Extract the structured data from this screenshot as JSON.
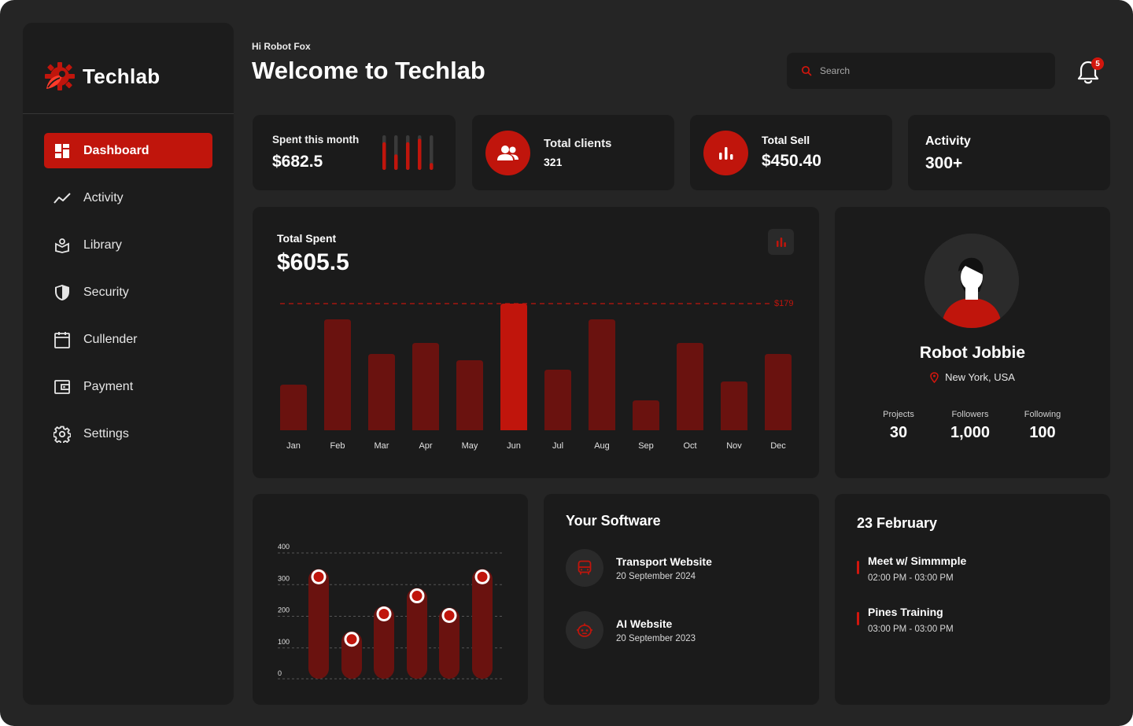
{
  "brand": {
    "name": "Techlab"
  },
  "sidebar": {
    "items": [
      {
        "label": "Dashboard",
        "icon": "dashboard-icon",
        "active": true
      },
      {
        "label": "Activity",
        "icon": "activity-icon"
      },
      {
        "label": "Library",
        "icon": "library-icon"
      },
      {
        "label": "Security",
        "icon": "shield-icon"
      },
      {
        "label": "Cullender",
        "icon": "calendar-icon"
      },
      {
        "label": "Payment",
        "icon": "wallet-icon"
      },
      {
        "label": "Settings",
        "icon": "gear-icon"
      }
    ]
  },
  "header": {
    "greeting": "Hi Robot Fox",
    "title": "Welcome to Techlab",
    "search_placeholder": "Search",
    "notification_count": "5"
  },
  "stats": {
    "spent": {
      "label": "Spent this month",
      "value": "$682.5"
    },
    "clients": {
      "label": "Total clients",
      "value": "321"
    },
    "sell": {
      "label": "Total Sell",
      "value": "$450.40"
    },
    "activity": {
      "label": "Activity",
      "value": "300+"
    }
  },
  "total_spent": {
    "label": "Total Spent",
    "value": "$605.5",
    "marker_label": "$179"
  },
  "profile": {
    "name": "Robot Jobbie",
    "location": "New York, USA",
    "stats": [
      {
        "label": "Projects",
        "value": "30"
      },
      {
        "label": "Followers",
        "value": "1,000"
      },
      {
        "label": "Following",
        "value": "100"
      }
    ]
  },
  "software": {
    "title": "Your Software",
    "items": [
      {
        "title": "Transport Website",
        "date": "20 September 2024",
        "icon": "bus-icon"
      },
      {
        "title": "AI Website",
        "date": "20 September 2023",
        "icon": "robot-icon"
      }
    ]
  },
  "schedule": {
    "date": "23 February",
    "events": [
      {
        "title": "Meet w/ Simmmple",
        "time": "02:00 PM - 03:00 PM"
      },
      {
        "title": "Pines Training",
        "time": "03:00 PM - 03:00 PM"
      }
    ]
  },
  "colors": {
    "accent": "#c0150c",
    "bar_dark": "#6a120f",
    "card": "#1b1b1b",
    "page": "#252525"
  },
  "chart_data": [
    {
      "type": "bar",
      "title": "Total Spent",
      "categories": [
        "Jan",
        "Feb",
        "Mar",
        "Apr",
        "May",
        "Jun",
        "Jul",
        "Aug",
        "Sep",
        "Oct",
        "Nov",
        "Dec"
      ],
      "values": [
        58,
        141,
        97,
        111,
        89,
        161,
        77,
        141,
        38,
        111,
        62,
        97
      ],
      "highlight_index": 5,
      "reference_line": 179,
      "ylim": [
        0,
        161
      ]
    },
    {
      "type": "bar",
      "yticks": [
        0,
        100,
        200,
        300,
        400
      ],
      "ylim": [
        0,
        400
      ],
      "values": [
        322,
        125,
        205,
        262,
        200,
        322
      ],
      "markers": [
        322,
        125,
        205,
        262,
        200,
        322
      ],
      "grid": true
    },
    {
      "type": "bar",
      "title": "Spent this month sparkline",
      "values": [
        0.8,
        0.45,
        0.8,
        0.9,
        0.2
      ],
      "ylim": [
        0,
        1
      ]
    }
  ]
}
